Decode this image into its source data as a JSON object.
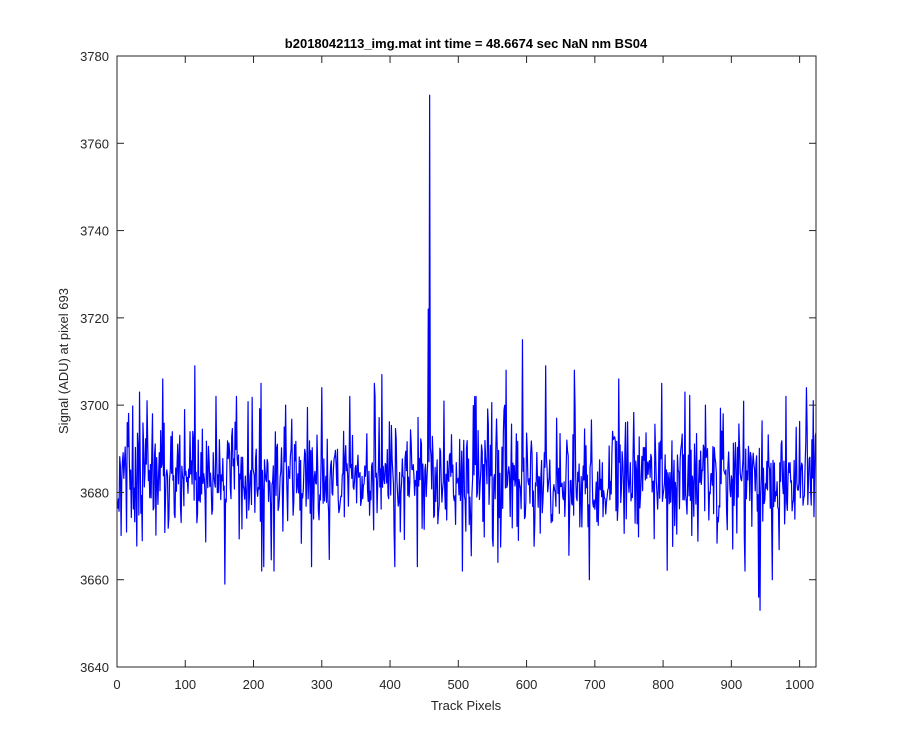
{
  "chart_data": {
    "type": "line",
    "title": "b2018042113_img.mat int time = 48.6674 sec  NaN nm BS04",
    "xlabel": "Track Pixels",
    "ylabel": "Signal (ADU) at pixel 693",
    "xlim": [
      0,
      1024
    ],
    "ylim": [
      3640,
      3780
    ],
    "xticks": [
      0,
      100,
      200,
      300,
      400,
      500,
      600,
      700,
      800,
      900,
      1000
    ],
    "yticks": [
      3640,
      3660,
      3680,
      3700,
      3720,
      3740,
      3760,
      3780
    ],
    "grid": false,
    "line_color": "#0000ff",
    "series": [
      {
        "x_start": 1,
        "x_step": 1,
        "baseline": 3683,
        "noise_amplitude": 7,
        "count": 1024,
        "notable_points": [
          {
            "x": 15,
            "y": 3696
          },
          {
            "x": 33,
            "y": 3703
          },
          {
            "x": 44,
            "y": 3701
          },
          {
            "x": 52,
            "y": 3698
          },
          {
            "x": 67,
            "y": 3706
          },
          {
            "x": 114,
            "y": 3709
          },
          {
            "x": 145,
            "y": 3702
          },
          {
            "x": 158,
            "y": 3659
          },
          {
            "x": 175,
            "y": 3702
          },
          {
            "x": 215,
            "y": 3663
          },
          {
            "x": 247,
            "y": 3700
          },
          {
            "x": 285,
            "y": 3663
          },
          {
            "x": 300,
            "y": 3704
          },
          {
            "x": 341,
            "y": 3702
          },
          {
            "x": 378,
            "y": 3702
          },
          {
            "x": 388,
            "y": 3707
          },
          {
            "x": 407,
            "y": 3663
          },
          {
            "x": 440,
            "y": 3663
          },
          {
            "x": 456,
            "y": 3722
          },
          {
            "x": 458,
            "y": 3771
          },
          {
            "x": 526,
            "y": 3702
          },
          {
            "x": 558,
            "y": 3664
          },
          {
            "x": 570,
            "y": 3708
          },
          {
            "x": 594,
            "y": 3715
          },
          {
            "x": 628,
            "y": 3709
          },
          {
            "x": 670,
            "y": 3708
          },
          {
            "x": 692,
            "y": 3660
          },
          {
            "x": 735,
            "y": 3706
          },
          {
            "x": 798,
            "y": 3705
          },
          {
            "x": 832,
            "y": 3703
          },
          {
            "x": 862,
            "y": 3700
          },
          {
            "x": 888,
            "y": 3698
          },
          {
            "x": 920,
            "y": 3662
          },
          {
            "x": 940,
            "y": 3656
          },
          {
            "x": 942,
            "y": 3653
          },
          {
            "x": 960,
            "y": 3660
          },
          {
            "x": 980,
            "y": 3702
          },
          {
            "x": 1010,
            "y": 3704
          },
          {
            "x": 1020,
            "y": 3701
          }
        ]
      }
    ]
  }
}
